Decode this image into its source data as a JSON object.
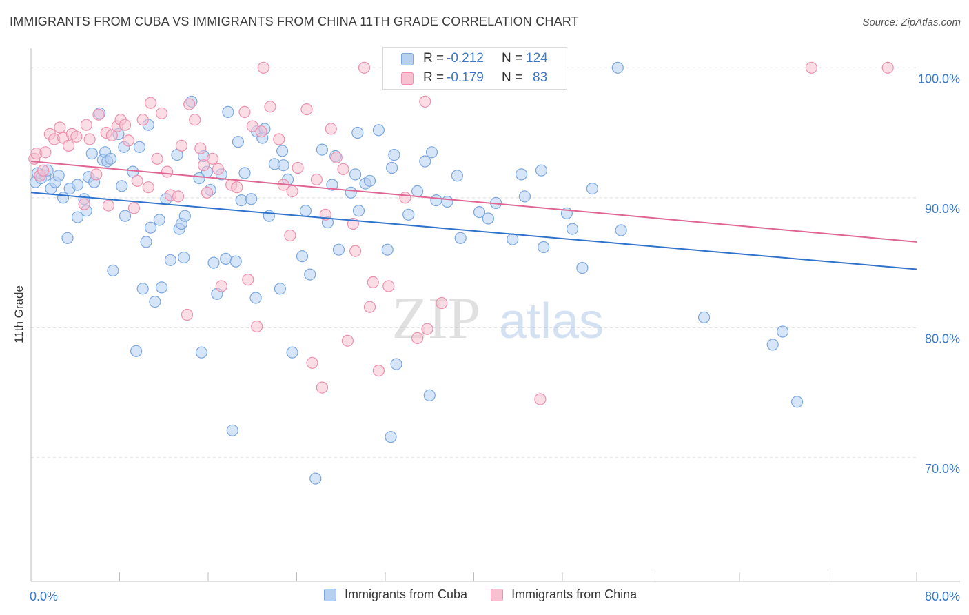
{
  "title": "IMMIGRANTS FROM CUBA VS IMMIGRANTS FROM CHINA 11TH GRADE CORRELATION CHART",
  "source": "Source: ZipAtlas.com",
  "watermark": {
    "zip": "ZIP",
    "atlas": "atlas"
  },
  "colors": {
    "cuba_fill": "#b6d0f2",
    "cuba_stroke": "#7aa7e0",
    "cuba_line": "#2f72cc",
    "china_fill": "#f7c1d2",
    "china_stroke": "#ec90ad",
    "china_line": "#e06592",
    "tick_label": "#3a78c8",
    "grid": "#dcdcdc"
  },
  "legend_top": {
    "rows": [
      {
        "r_label": "R = ",
        "r_value": "-0.212",
        "n_label": "N = ",
        "n_value": "124"
      },
      {
        "r_label": "R = ",
        "r_value": "-0.179",
        "n_label": "N = ",
        "n_value": "83"
      }
    ]
  },
  "legend_bottom": [
    "Immigrants from Cuba",
    "Immigrants from China"
  ],
  "chart_data": {
    "type": "scatter",
    "title": "IMMIGRANTS FROM CUBA VS IMMIGRANTS FROM CHINA 11TH GRADE CORRELATION CHART",
    "xlabel": "",
    "ylabel": "11th Grade",
    "xlim": [
      0,
      80
    ],
    "ylim": [
      60.5,
      101.5
    ],
    "x_tick_labels": [
      {
        "value": 0,
        "label": "0.0%"
      },
      {
        "value": 80,
        "label": "80.0%"
      }
    ],
    "y_tick_labels": [
      {
        "value": 100,
        "label": "100.0%"
      },
      {
        "value": 90,
        "label": "90.0%"
      },
      {
        "value": 80,
        "label": "80.0%"
      },
      {
        "value": 70,
        "label": "70.0%"
      }
    ],
    "grid": true,
    "legend_position": "top-center",
    "series": [
      {
        "name": "Immigrants from Cuba",
        "R": -0.212,
        "N": 124,
        "trend": {
          "x": [
            0,
            80
          ],
          "y": [
            90.4,
            84.5
          ]
        },
        "points": [
          [
            0.4,
            91.2
          ],
          [
            0.6,
            91.9
          ],
          [
            0.9,
            91.5
          ],
          [
            1.3,
            91.7
          ],
          [
            1.5,
            92.1
          ],
          [
            1.8,
            90.7
          ],
          [
            2.2,
            91.2
          ],
          [
            2.5,
            91.7
          ],
          [
            2.9,
            90.0
          ],
          [
            3.3,
            86.9
          ],
          [
            3.5,
            90.7
          ],
          [
            4.2,
            91.0
          ],
          [
            4.2,
            88.5
          ],
          [
            4.8,
            89.9
          ],
          [
            5.0,
            89.0
          ],
          [
            5.2,
            91.6
          ],
          [
            5.5,
            93.4
          ],
          [
            5.7,
            91.2
          ],
          [
            6.2,
            96.5
          ],
          [
            6.5,
            92.9
          ],
          [
            6.7,
            93.5
          ],
          [
            6.9,
            92.8
          ],
          [
            7.2,
            93.0
          ],
          [
            7.4,
            84.4
          ],
          [
            7.9,
            94.9
          ],
          [
            8.2,
            90.9
          ],
          [
            8.4,
            93.9
          ],
          [
            8.5,
            88.6
          ],
          [
            9.2,
            92.0
          ],
          [
            9.5,
            78.2
          ],
          [
            9.8,
            93.9
          ],
          [
            10.1,
            83.0
          ],
          [
            10.4,
            86.6
          ],
          [
            10.6,
            95.6
          ],
          [
            10.8,
            87.7
          ],
          [
            11.2,
            82.0
          ],
          [
            11.6,
            88.3
          ],
          [
            11.8,
            83.1
          ],
          [
            12.2,
            89.9
          ],
          [
            12.6,
            85.2
          ],
          [
            13.2,
            93.3
          ],
          [
            13.4,
            87.6
          ],
          [
            13.6,
            88.0
          ],
          [
            13.8,
            85.4
          ],
          [
            13.9,
            88.6
          ],
          [
            14.5,
            97.4
          ],
          [
            15.2,
            91.5
          ],
          [
            15.4,
            78.1
          ],
          [
            15.6,
            93.2
          ],
          [
            15.9,
            92.0
          ],
          [
            16.2,
            90.6
          ],
          [
            16.5,
            85.0
          ],
          [
            16.8,
            82.6
          ],
          [
            17.2,
            91.8
          ],
          [
            17.6,
            85.3
          ],
          [
            17.8,
            96.6
          ],
          [
            18.2,
            72.1
          ],
          [
            18.5,
            85.1
          ],
          [
            18.7,
            94.3
          ],
          [
            19.0,
            89.8
          ],
          [
            19.3,
            91.9
          ],
          [
            19.9,
            89.9
          ],
          [
            20.3,
            82.3
          ],
          [
            20.4,
            95.1
          ],
          [
            20.9,
            94.6
          ],
          [
            21.1,
            95.3
          ],
          [
            21.5,
            88.6
          ],
          [
            22.0,
            92.6
          ],
          [
            22.5,
            83.0
          ],
          [
            22.7,
            93.6
          ],
          [
            22.8,
            92.5
          ],
          [
            23.2,
            91.4
          ],
          [
            23.6,
            78.1
          ],
          [
            24.5,
            85.5
          ],
          [
            24.8,
            89.0
          ],
          [
            25.2,
            84.1
          ],
          [
            25.7,
            68.4
          ],
          [
            26.3,
            93.7
          ],
          [
            26.8,
            88.1
          ],
          [
            27.2,
            91.0
          ],
          [
            27.5,
            93.2
          ],
          [
            27.8,
            86.0
          ],
          [
            28.9,
            90.4
          ],
          [
            29.3,
            91.8
          ],
          [
            29.5,
            95.0
          ],
          [
            29.6,
            89.0
          ],
          [
            30.2,
            91.1
          ],
          [
            30.6,
            91.3
          ],
          [
            31.4,
            95.2
          ],
          [
            32.2,
            86.0
          ],
          [
            32.5,
            71.6
          ],
          [
            32.6,
            92.3
          ],
          [
            32.8,
            93.3
          ],
          [
            33.0,
            77.2
          ],
          [
            34.1,
            88.7
          ],
          [
            34.9,
            90.5
          ],
          [
            35.6,
            92.8
          ],
          [
            36.0,
            74.8
          ],
          [
            36.2,
            93.5
          ],
          [
            36.6,
            89.8
          ],
          [
            37.6,
            89.7
          ],
          [
            38.5,
            91.7
          ],
          [
            38.8,
            86.9
          ],
          [
            40.5,
            88.9
          ],
          [
            41.3,
            88.4
          ],
          [
            42.0,
            89.6
          ],
          [
            43.5,
            86.8
          ],
          [
            44.3,
            91.8
          ],
          [
            44.6,
            90.1
          ],
          [
            46.1,
            92.1
          ],
          [
            46.3,
            86.2
          ],
          [
            48.4,
            88.8
          ],
          [
            48.9,
            87.6
          ],
          [
            49.8,
            84.6
          ],
          [
            50.7,
            90.7
          ],
          [
            53.0,
            100.0
          ],
          [
            53.3,
            87.5
          ],
          [
            60.8,
            80.8
          ],
          [
            67.0,
            78.7
          ],
          [
            67.9,
            79.7
          ],
          [
            69.2,
            74.3
          ]
        ]
      },
      {
        "name": "Immigrants from China",
        "R": -0.179,
        "N": 83,
        "trend": {
          "x": [
            0,
            80
          ],
          "y": [
            92.8,
            86.6
          ]
        },
        "points": [
          [
            0.3,
            93.0
          ],
          [
            0.5,
            93.4
          ],
          [
            0.8,
            91.7
          ],
          [
            1.1,
            92.1
          ],
          [
            1.3,
            93.5
          ],
          [
            1.7,
            94.9
          ],
          [
            2.1,
            94.5
          ],
          [
            2.6,
            95.4
          ],
          [
            2.9,
            94.6
          ],
          [
            3.4,
            94.0
          ],
          [
            3.7,
            94.9
          ],
          [
            4.1,
            94.7
          ],
          [
            4.8,
            89.5
          ],
          [
            5.0,
            95.6
          ],
          [
            5.3,
            94.5
          ],
          [
            5.9,
            91.8
          ],
          [
            6.1,
            96.4
          ],
          [
            6.8,
            95.0
          ],
          [
            7.0,
            89.4
          ],
          [
            7.3,
            94.8
          ],
          [
            7.8,
            95.5
          ],
          [
            8.1,
            96.0
          ],
          [
            8.5,
            95.6
          ],
          [
            8.8,
            94.4
          ],
          [
            9.3,
            89.2
          ],
          [
            9.6,
            91.3
          ],
          [
            10.1,
            96.0
          ],
          [
            10.6,
            90.8
          ],
          [
            10.8,
            97.3
          ],
          [
            11.4,
            93.0
          ],
          [
            11.8,
            96.5
          ],
          [
            12.3,
            92.0
          ],
          [
            12.6,
            90.2
          ],
          [
            13.3,
            90.1
          ],
          [
            13.6,
            94.0
          ],
          [
            14.1,
            81.0
          ],
          [
            14.3,
            97.2
          ],
          [
            14.8,
            96.0
          ],
          [
            15.3,
            93.8
          ],
          [
            15.6,
            92.5
          ],
          [
            15.9,
            90.4
          ],
          [
            16.4,
            93.0
          ],
          [
            16.9,
            92.2
          ],
          [
            17.2,
            83.2
          ],
          [
            18.1,
            91.0
          ],
          [
            18.6,
            90.8
          ],
          [
            19.3,
            96.6
          ],
          [
            19.6,
            83.7
          ],
          [
            20.0,
            95.5
          ],
          [
            20.4,
            80.1
          ],
          [
            20.8,
            95.1
          ],
          [
            21.0,
            100.0
          ],
          [
            21.6,
            97.0
          ],
          [
            22.4,
            94.5
          ],
          [
            22.8,
            91.0
          ],
          [
            23.4,
            87.1
          ],
          [
            23.6,
            90.5
          ],
          [
            24.1,
            92.3
          ],
          [
            24.9,
            96.8
          ],
          [
            25.4,
            77.3
          ],
          [
            25.8,
            91.4
          ],
          [
            26.3,
            75.4
          ],
          [
            26.6,
            88.7
          ],
          [
            27.1,
            95.3
          ],
          [
            27.6,
            93.1
          ],
          [
            28.2,
            92.2
          ],
          [
            28.6,
            79.0
          ],
          [
            29.1,
            88.0
          ],
          [
            29.3,
            85.9
          ],
          [
            30.1,
            100.0
          ],
          [
            30.6,
            81.6
          ],
          [
            30.9,
            83.5
          ],
          [
            31.4,
            76.7
          ],
          [
            32.3,
            83.2
          ],
          [
            33.3,
            100.0
          ],
          [
            33.8,
            90.0
          ],
          [
            34.9,
            79.2
          ],
          [
            35.6,
            97.4
          ],
          [
            35.8,
            79.9
          ],
          [
            37.1,
            81.9
          ],
          [
            46.0,
            74.5
          ],
          [
            70.5,
            100.0
          ],
          [
            77.4,
            100.0
          ]
        ]
      }
    ]
  }
}
